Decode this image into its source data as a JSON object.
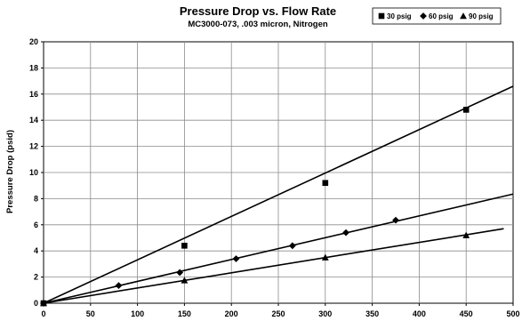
{
  "chart_data": {
    "type": "line",
    "title": "Pressure Drop vs. Flow Rate",
    "subtitle": "MC3000-073, .003 micron, Nitrogen",
    "xlabel": "",
    "ylabel": "Pressure Drop (psid)",
    "xlim": [
      0,
      500
    ],
    "ylim": [
      0,
      20
    ],
    "x_ticks": [
      "0",
      "50",
      "100",
      "150",
      "200",
      "250",
      "300",
      "350",
      "400",
      "450",
      "500"
    ],
    "y_ticks": [
      "0",
      "2",
      "4",
      "6",
      "8",
      "10",
      "12",
      "14",
      "16",
      "18",
      "20"
    ],
    "grid": true,
    "legend_position": "top-right",
    "series": [
      {
        "name": "30 psig",
        "marker": "square",
        "color": "#000000",
        "points": [
          [
            0,
            0
          ],
          [
            150,
            4.4
          ],
          [
            300,
            9.2
          ],
          [
            450,
            14.8
          ]
        ],
        "trend_end": [
          500,
          16.6
        ]
      },
      {
        "name": "60 psig",
        "marker": "diamond",
        "color": "#000000",
        "points": [
          [
            0,
            0
          ],
          [
            80,
            1.35
          ],
          [
            145,
            2.35
          ],
          [
            205,
            3.4
          ],
          [
            265,
            4.4
          ],
          [
            322,
            5.4
          ],
          [
            375,
            6.35
          ]
        ],
        "trend_end": [
          500,
          8.35
        ]
      },
      {
        "name": "90 psig",
        "marker": "triangle",
        "color": "#000000",
        "points": [
          [
            0,
            0
          ],
          [
            150,
            1.75
          ],
          [
            300,
            3.5
          ],
          [
            450,
            5.2
          ]
        ],
        "trend_end": [
          490,
          5.7
        ]
      }
    ]
  }
}
